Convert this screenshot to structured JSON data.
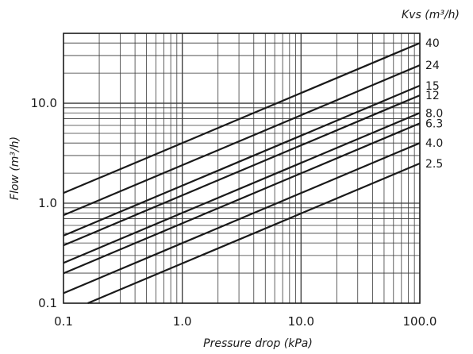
{
  "chart_data": {
    "type": "line",
    "xlabel": "Pressure drop (kPa)",
    "ylabel": "Flow  (m³/h)",
    "legend_title": "Kvs (m³/h)",
    "x_scale": "log",
    "y_scale": "log",
    "xlim": [
      0.1,
      100
    ],
    "ylim": [
      0.1,
      50
    ],
    "grid": true,
    "legend_placement": "right",
    "x_tick_values": [
      0.1,
      1,
      10,
      100
    ],
    "x_tick_labels": [
      "0.1",
      "1.0",
      "10.0",
      "100.0"
    ],
    "y_tick_values": [
      0.1,
      1,
      10
    ],
    "y_tick_labels": [
      "0.1",
      "1.0",
      "10.0"
    ],
    "series": [
      {
        "name": "40",
        "kvs": 40,
        "x": [
          0.1,
          100
        ],
        "y": [
          1.265,
          40.0
        ]
      },
      {
        "name": "24",
        "kvs": 24,
        "x": [
          0.1,
          100
        ],
        "y": [
          0.759,
          24.0
        ]
      },
      {
        "name": "15",
        "kvs": 15,
        "x": [
          0.1,
          100
        ],
        "y": [
          0.474,
          15.0
        ]
      },
      {
        "name": "12",
        "kvs": 12,
        "x": [
          0.1,
          100
        ],
        "y": [
          0.379,
          12.0
        ]
      },
      {
        "name": "8.0",
        "kvs": 8.0,
        "x": [
          0.1,
          100
        ],
        "y": [
          0.253,
          8.0
        ]
      },
      {
        "name": "6.3",
        "kvs": 6.3,
        "x": [
          0.1,
          100
        ],
        "y": [
          0.199,
          6.3
        ]
      },
      {
        "name": "4.0",
        "kvs": 4.0,
        "x": [
          0.1,
          100
        ],
        "y": [
          0.126,
          4.0
        ]
      },
      {
        "name": "2.5",
        "kvs": 2.5,
        "x": [
          0.16,
          100
        ],
        "y": [
          0.1,
          2.5
        ]
      }
    ],
    "colors": {
      "line": "#1a1a1a",
      "grid": "#3a3a3a",
      "background": "#ffffff"
    }
  }
}
